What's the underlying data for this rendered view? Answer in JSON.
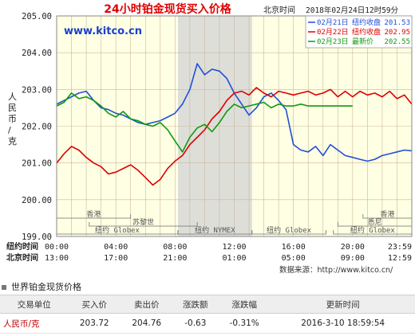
{
  "chart_title": "24小时铂金现货买入价格",
  "watermark": "www.kitco.cn",
  "datetime_label": "北京时间",
  "datetime_value": "2018年02月24日12时59分",
  "y_axis_label": "人民币/克",
  "source_note": "数据来源：http://www.kitco.cn/",
  "row_label_ny": "纽约时间",
  "row_label_bj": "北京时间",
  "legend": [
    {
      "date": "02月21日",
      "label": "纽约收盘",
      "value": "201.53",
      "color": "#1f4fd8"
    },
    {
      "date": "02月22日",
      "label": "纽约收盘",
      "value": "202.95",
      "color": "#dd0000"
    },
    {
      "date": "02月23日",
      "label": "最新价",
      "value": "202.55",
      "color": "#119911"
    }
  ],
  "markets": {
    "row1": [
      "香港",
      "香港"
    ],
    "row2": [
      "苏黎世",
      "悉尼"
    ],
    "row3": [
      "纽约 Globex",
      "纽约 NYMEX",
      "纽约 Globex",
      "纽约 Globex"
    ]
  },
  "chart_data": {
    "type": "line",
    "ylim": [
      199.0,
      205.0
    ],
    "yticks": [
      "205.00",
      "204.00",
      "203.00",
      "202.00",
      "201.00",
      "200.00",
      "199.00"
    ],
    "x_ticks_ny": [
      "00:00",
      "04:00",
      "08:00",
      "12:00",
      "16:00",
      "20:00",
      "23:59"
    ],
    "x_ticks_bj": [
      "13:00",
      "17:00",
      "21:00",
      "01:00",
      "05:00",
      "09:00",
      "12:59"
    ],
    "x_ticks_hours": [
      0,
      4,
      8,
      12,
      16,
      20,
      24
    ],
    "shaded_hours": [
      8.2,
      13.2
    ],
    "series": [
      {
        "name": "02月21日",
        "color": "#1f4fd8",
        "x": [
          0,
          0.5,
          1,
          1.5,
          2,
          2.5,
          3,
          3.5,
          4,
          4.5,
          5,
          5.5,
          6,
          6.5,
          7,
          7.5,
          8,
          8.5,
          9,
          9.5,
          10,
          10.5,
          11,
          11.5,
          12,
          12.5,
          13,
          13.5,
          14,
          14.5,
          15,
          15.5,
          16,
          16.5,
          17,
          17.5,
          18,
          18.5,
          19,
          19.5,
          20,
          20.5,
          21,
          21.5,
          22,
          22.5,
          23,
          23.5,
          24
        ],
        "y": [
          202.6,
          202.7,
          202.8,
          202.9,
          202.95,
          202.7,
          202.5,
          202.45,
          202.35,
          202.3,
          202.2,
          202.1,
          202.05,
          202.1,
          202.15,
          202.25,
          202.35,
          202.6,
          203.0,
          203.7,
          203.4,
          203.55,
          203.5,
          203.3,
          202.9,
          202.6,
          202.3,
          202.5,
          202.8,
          202.9,
          202.7,
          202.45,
          201.5,
          201.35,
          201.3,
          201.45,
          201.2,
          201.5,
          201.35,
          201.2,
          201.15,
          201.1,
          201.05,
          201.1,
          201.2,
          201.25,
          201.3,
          201.35,
          201.33
        ]
      },
      {
        "name": "02月22日",
        "color": "#dd0000",
        "x": [
          0,
          0.5,
          1,
          1.5,
          2,
          2.5,
          3,
          3.5,
          4,
          4.5,
          5,
          5.5,
          6,
          6.5,
          7,
          7.5,
          8,
          8.5,
          9,
          9.5,
          10,
          10.5,
          11,
          11.5,
          12,
          12.5,
          13,
          13.5,
          14,
          14.5,
          15,
          15.5,
          16,
          16.5,
          17,
          17.5,
          18,
          18.5,
          19,
          19.5,
          20,
          20.5,
          21,
          21.5,
          22,
          22.5,
          23,
          23.5,
          24
        ],
        "y": [
          201.0,
          201.25,
          201.45,
          201.35,
          201.15,
          201.0,
          200.9,
          200.7,
          200.75,
          200.85,
          200.95,
          200.8,
          200.6,
          200.4,
          200.55,
          200.85,
          201.05,
          201.2,
          201.5,
          201.7,
          201.9,
          202.2,
          202.4,
          202.7,
          202.9,
          202.95,
          202.85,
          203.05,
          202.9,
          202.8,
          202.95,
          202.9,
          202.85,
          202.9,
          202.95,
          202.85,
          202.9,
          203.0,
          202.8,
          202.95,
          202.8,
          202.95,
          202.85,
          202.9,
          202.8,
          202.95,
          202.75,
          202.85,
          202.6
        ]
      },
      {
        "name": "02月23日",
        "color": "#119911",
        "x": [
          0,
          0.5,
          1,
          1.5,
          2,
          2.5,
          3,
          3.5,
          4,
          4.5,
          5,
          5.5,
          6,
          6.5,
          7,
          7.5,
          8,
          8.5,
          9,
          9.5,
          10,
          10.5,
          11,
          11.5,
          12,
          12.5,
          13,
          13.5,
          14,
          14.5,
          15,
          15.5,
          16,
          16.5,
          17,
          17.5,
          18,
          18.5,
          19,
          19.5,
          20
        ],
        "y": [
          202.55,
          202.65,
          202.9,
          202.75,
          202.8,
          202.7,
          202.55,
          202.35,
          202.25,
          202.4,
          202.2,
          202.15,
          202.05,
          202.0,
          202.1,
          201.9,
          201.6,
          201.3,
          201.7,
          201.95,
          202.05,
          201.85,
          202.1,
          202.4,
          202.6,
          202.5,
          202.55,
          202.6,
          202.65,
          202.5,
          202.6,
          202.55,
          202.55,
          202.6,
          202.55,
          202.55,
          202.55,
          202.55,
          202.55,
          202.55,
          202.55
        ]
      }
    ]
  },
  "table": {
    "section_title": "世界铂金现货价格",
    "headers": [
      "交易单位",
      "买入价",
      "卖出价",
      "涨跌额",
      "涨跌幅",
      "更新时间"
    ],
    "rows": [
      [
        "人民币/克",
        "203.72",
        "204.76",
        "-0.63",
        "-0.31%",
        "2016-3-10 18:59:54"
      ]
    ]
  }
}
